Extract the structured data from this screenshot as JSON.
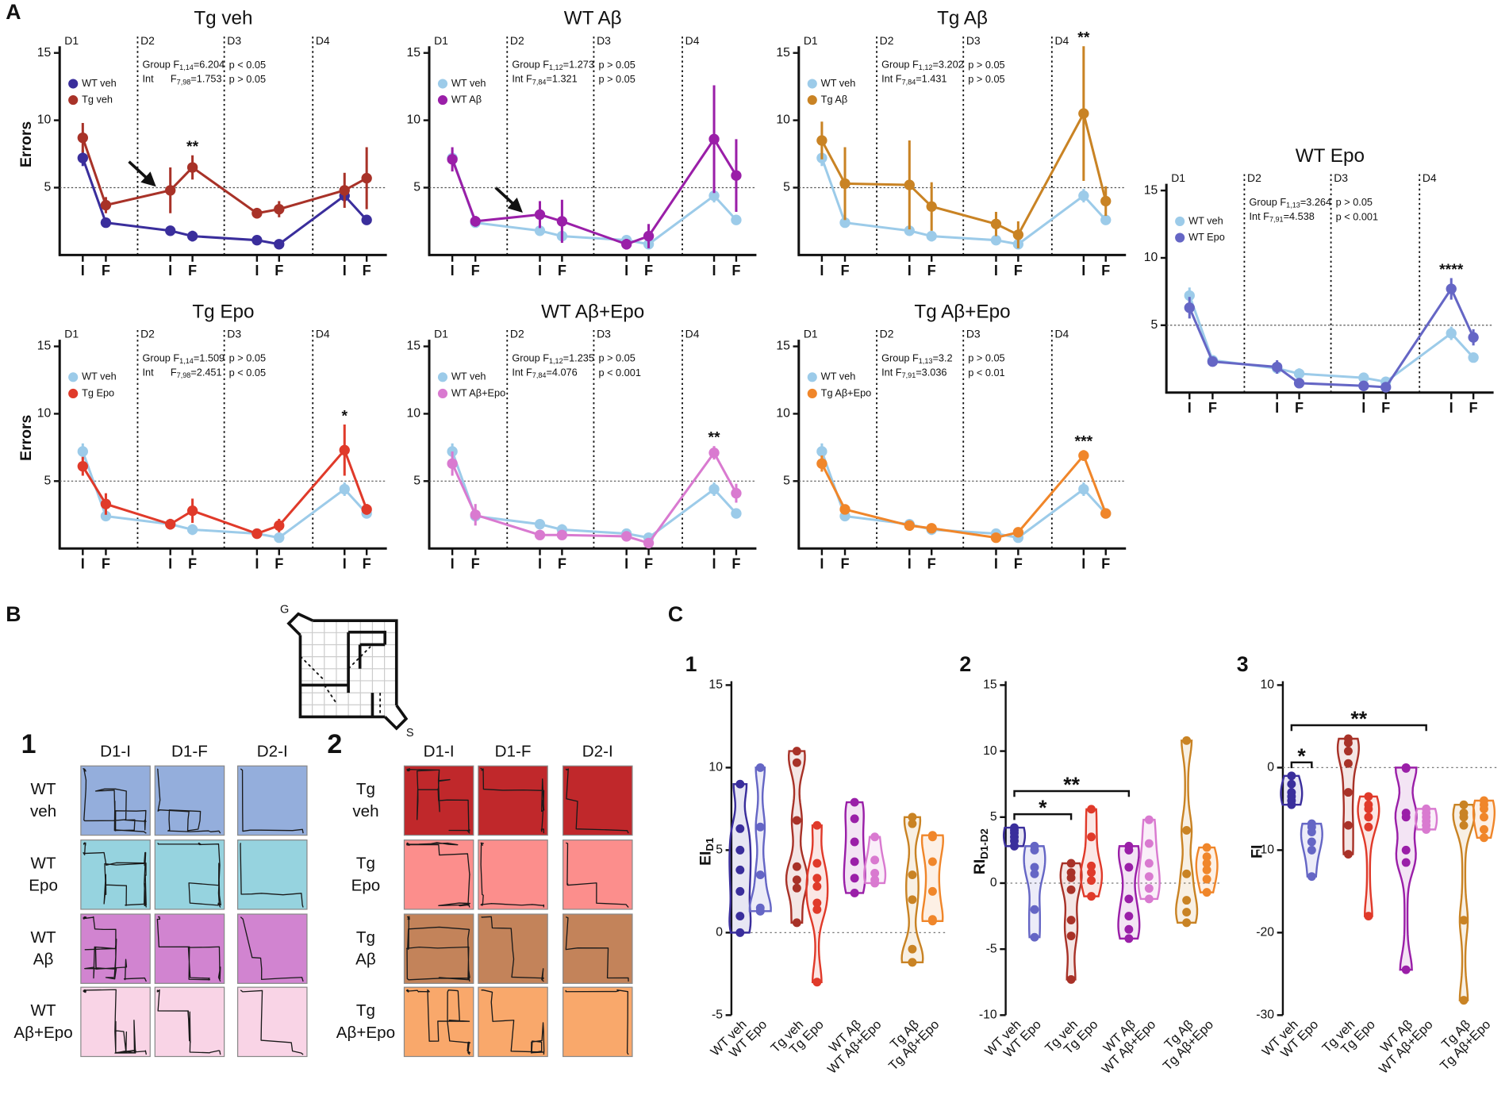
{
  "labels": {
    "a": "A",
    "c": "C"
  },
  "chart_data": [
    {
      "type": "line",
      "title": "Tg veh",
      "y_label": "Errors",
      "categories": [
        "I",
        "F",
        "I",
        "F",
        "I",
        "F",
        "I",
        "F"
      ],
      "days": [
        "D1",
        "D2",
        "D3",
        "D4"
      ],
      "ylim": [
        0,
        15.5
      ],
      "yticks": [
        5,
        10,
        15
      ],
      "hline": 5,
      "legend": "upper left",
      "series": [
        {
          "name": "WT veh",
          "color": "#3a2e9c",
          "values": [
            7.2,
            2.4,
            1.8,
            1.4,
            1.1,
            0.8,
            4.4,
            2.6
          ],
          "errors": [
            0.6,
            0.3,
            0.2,
            0.4,
            0.2,
            0.2,
            0.5,
            0.3
          ]
        },
        {
          "name": "Tg veh",
          "color": "#a83228",
          "values": [
            8.7,
            3.7,
            4.8,
            6.5,
            3.1,
            3.4,
            4.8,
            5.7
          ],
          "errors": [
            1.1,
            0.6,
            1.7,
            0.9,
            0.4,
            0.6,
            1.3,
            2.3
          ]
        }
      ],
      "significance": [
        null,
        null,
        null,
        "**",
        null,
        null,
        null,
        null
      ],
      "stats": [
        {
          "label": "Group F",
          "sub": "1,14",
          "value": "=6.204",
          "p": "p < 0.05"
        },
        {
          "label": "Int      F",
          "sub": "7,98",
          "value": "=1.753",
          "p": "p > 0.05"
        }
      ]
    },
    {
      "type": "line",
      "title": "WT Aβ",
      "categories": [
        "I",
        "F",
        "I",
        "F",
        "I",
        "F",
        "I",
        "F"
      ],
      "days": [
        "D1",
        "D2",
        "D3",
        "D4"
      ],
      "ylim": [
        0,
        15.5
      ],
      "yticks": [
        5,
        10,
        15
      ],
      "hline": 5,
      "legend": "upper left",
      "series": [
        {
          "name": "WT veh",
          "color": "#9ccbe9",
          "values": [
            7.2,
            2.4,
            1.8,
            1.4,
            1.1,
            0.8,
            4.4,
            2.6
          ],
          "errors": [
            0.6,
            0.3,
            0.2,
            0.4,
            0.2,
            0.2,
            0.5,
            0.3
          ]
        },
        {
          "name": "WT Aβ",
          "color": "#9a1fa8",
          "values": [
            7.1,
            2.5,
            3.0,
            2.5,
            0.8,
            1.4,
            8.6,
            5.9
          ],
          "errors": [
            0.9,
            0.4,
            1.0,
            1.6,
            0.4,
            0.9,
            4.0,
            2.7
          ]
        }
      ],
      "stats": [
        {
          "label": "Group F",
          "sub": "1,12",
          "value": "=1.273",
          "p": "p > 0.05"
        },
        {
          "label": "Int F",
          "sub": "7,84",
          "value": "=1.321",
          "p": "p > 0.05"
        }
      ]
    },
    {
      "type": "line",
      "title": "Tg Aβ",
      "categories": [
        "I",
        "F",
        "I",
        "F",
        "I",
        "F",
        "I",
        "F"
      ],
      "days": [
        "D1",
        "D2",
        "D3",
        "D4"
      ],
      "ylim": [
        0,
        15.5
      ],
      "yticks": [
        5,
        10,
        15
      ],
      "hline": 5,
      "legend": "upper left",
      "series": [
        {
          "name": "WT veh",
          "color": "#9ccbe9",
          "values": [
            7.2,
            2.4,
            1.8,
            1.4,
            1.1,
            0.8,
            4.4,
            2.6
          ],
          "errors": [
            0.6,
            0.3,
            0.2,
            0.4,
            0.2,
            0.2,
            0.5,
            0.3
          ]
        },
        {
          "name": "Tg Aβ",
          "color": "#c98324",
          "values": [
            8.5,
            5.3,
            5.2,
            3.6,
            2.3,
            1.5,
            10.5,
            4.0
          ],
          "errors": [
            1.4,
            2.7,
            3.3,
            1.8,
            0.9,
            1.0,
            5.0,
            1.1
          ]
        }
      ],
      "significance": [
        null,
        null,
        null,
        null,
        null,
        null,
        "**",
        null
      ],
      "stats": [
        {
          "label": "Group F",
          "sub": "1,12",
          "value": "=3.202",
          "p": "p > 0.05"
        },
        {
          "label": "Int F",
          "sub": "7,84",
          "value": "=1.431",
          "p": "p > 0.05"
        }
      ]
    },
    {
      "type": "line",
      "title": "WT Epo",
      "categories": [
        "I",
        "F",
        "I",
        "F",
        "I",
        "F",
        "I",
        "F"
      ],
      "days": [
        "D1",
        "D2",
        "D3",
        "D4"
      ],
      "ylim": [
        0,
        15.5
      ],
      "yticks": [
        5,
        10,
        15
      ],
      "hline": 5,
      "legend": "upper left",
      "series": [
        {
          "name": "WT veh",
          "color": "#9ccbe9",
          "values": [
            7.2,
            2.4,
            1.8,
            1.4,
            1.1,
            0.8,
            4.4,
            2.6
          ],
          "errors": [
            0.6,
            0.3,
            0.2,
            0.4,
            0.2,
            0.2,
            0.5,
            0.3
          ]
        },
        {
          "name": "WT Epo",
          "color": "#6566c5",
          "values": [
            6.3,
            2.3,
            1.9,
            0.7,
            0.5,
            0.4,
            7.7,
            4.1
          ],
          "errors": [
            0.8,
            0.2,
            0.5,
            0.2,
            0.2,
            0.2,
            0.8,
            0.6
          ]
        }
      ],
      "significance": [
        null,
        null,
        null,
        null,
        null,
        null,
        "****",
        null
      ],
      "stats": [
        {
          "label": "Group F",
          "sub": "1,13",
          "value": "=3.264",
          "p": "p > 0.05"
        },
        {
          "label": "Int F",
          "sub": "7,91",
          "value": "=4.538",
          "p": "p < 0.001"
        }
      ]
    },
    {
      "type": "line",
      "title": "Tg Epo",
      "y_label": "Errors",
      "categories": [
        "I",
        "F",
        "I",
        "F",
        "I",
        "F",
        "I",
        "F"
      ],
      "days": [
        "D1",
        "D2",
        "D3",
        "D4"
      ],
      "ylim": [
        0,
        15.5
      ],
      "yticks": [
        5,
        10,
        15
      ],
      "hline": 5,
      "legend": "upper left",
      "series": [
        {
          "name": "WT veh",
          "color": "#9ccbe9",
          "values": [
            7.2,
            2.4,
            1.8,
            1.4,
            1.1,
            0.8,
            4.4,
            2.6
          ],
          "errors": [
            0.6,
            0.3,
            0.2,
            0.4,
            0.2,
            0.2,
            0.5,
            0.3
          ]
        },
        {
          "name": "Tg Epo",
          "color": "#e03a2a",
          "values": [
            6.1,
            3.3,
            1.8,
            2.8,
            1.1,
            1.7,
            7.3,
            2.9
          ],
          "errors": [
            0.7,
            0.8,
            0.4,
            0.9,
            0.2,
            0.5,
            1.9,
            0.4
          ]
        }
      ],
      "significance": [
        null,
        null,
        null,
        null,
        null,
        null,
        "*",
        null
      ],
      "stats": [
        {
          "label": "Group F",
          "sub": "1,14",
          "value": "=1.509",
          "p": "p > 0.05"
        },
        {
          "label": "Int      F",
          "sub": "7,98",
          "value": "=2.451",
          "p": "p < 0.05"
        }
      ]
    },
    {
      "type": "line",
      "title": "WT Aβ+Epo",
      "categories": [
        "I",
        "F",
        "I",
        "F",
        "I",
        "F",
        "I",
        "F"
      ],
      "days": [
        "D1",
        "D2",
        "D3",
        "D4"
      ],
      "ylim": [
        0,
        15.5
      ],
      "yticks": [
        5,
        10,
        15
      ],
      "hline": 5,
      "legend": "upper left",
      "series": [
        {
          "name": "WT veh",
          "color": "#9ccbe9",
          "values": [
            7.2,
            2.4,
            1.8,
            1.4,
            1.1,
            0.8,
            4.4,
            2.6
          ],
          "errors": [
            0.6,
            0.3,
            0.2,
            0.4,
            0.2,
            0.2,
            0.5,
            0.3
          ]
        },
        {
          "name": "WT Aβ+Epo",
          "color": "#d97ad0",
          "values": [
            6.3,
            2.5,
            1.0,
            1.0,
            0.9,
            0.4,
            7.1,
            4.1
          ],
          "errors": [
            0.9,
            0.8,
            0.2,
            0.2,
            0.2,
            0.2,
            0.5,
            0.7
          ]
        }
      ],
      "significance": [
        null,
        null,
        null,
        null,
        null,
        null,
        "**",
        null
      ],
      "stats": [
        {
          "label": "Group F",
          "sub": "1,12",
          "value": "=1.235",
          "p": "p > 0.05"
        },
        {
          "label": "Int F",
          "sub": "7,84",
          "value": "=4.076",
          "p": "p < 0.001"
        }
      ]
    },
    {
      "type": "line",
      "title": "Tg Aβ+Epo",
      "categories": [
        "I",
        "F",
        "I",
        "F",
        "I",
        "F",
        "I",
        "F"
      ],
      "days": [
        "D1",
        "D2",
        "D3",
        "D4"
      ],
      "ylim": [
        0,
        15.5
      ],
      "yticks": [
        5,
        10,
        15
      ],
      "hline": 5,
      "legend": "upper left",
      "series": [
        {
          "name": "WT veh",
          "color": "#9ccbe9",
          "values": [
            7.2,
            2.4,
            1.8,
            1.4,
            1.1,
            0.8,
            4.4,
            2.6
          ],
          "errors": [
            0.6,
            0.3,
            0.2,
            0.4,
            0.2,
            0.2,
            0.5,
            0.3
          ]
        },
        {
          "name": "Tg Aβ+Epo",
          "color": "#f0862a",
          "values": [
            6.3,
            2.9,
            1.7,
            1.5,
            0.8,
            1.2,
            6.9,
            2.6
          ],
          "errors": [
            0.6,
            0.3,
            0.2,
            0.2,
            0.3,
            0.2,
            0.4,
            0.2
          ]
        }
      ],
      "significance": [
        null,
        null,
        null,
        null,
        null,
        null,
        "***",
        null
      ],
      "stats": [
        {
          "label": "Group F",
          "sub": "1,13",
          "value": "=3.2",
          "p": "p > 0.05"
        },
        {
          "label": "Int F",
          "sub": "7,91",
          "value": "=3.036",
          "p": "p < 0.01"
        }
      ]
    },
    {
      "type": "violin",
      "number": "1",
      "y_label": {
        "text": "EI",
        "sub": "D1"
      },
      "categories": [
        "WT veh",
        "WT Epo",
        "Tg veh",
        "Tg Epo",
        "WT Aβ",
        "WT Aβ+Epo",
        "Tg Aβ",
        "Tg Aβ+Epo"
      ],
      "colors": [
        "#3a2e9c",
        "#6566c5",
        "#a83228",
        "#e03a2a",
        "#9a1fa8",
        "#d97ad0",
        "#c98324",
        "#f0862a"
      ],
      "ylim": [
        -5,
        15
      ],
      "yticks": [
        -5,
        0,
        5,
        10,
        15
      ],
      "hline": 0,
      "values": [
        [
          9,
          6.3,
          5,
          3.8,
          2.5,
          1,
          0
        ],
        [
          10,
          6.4,
          3.5,
          1.5,
          1.3,
          1.3
        ],
        [
          11,
          10.3,
          6.8,
          4,
          3.2,
          2.7,
          0.6
        ],
        [
          6.5,
          4.2,
          3.3,
          2.8,
          1.8,
          1.4,
          -3
        ],
        [
          7.9,
          6.9,
          5.5,
          4.3,
          3.3,
          2.4
        ],
        [
          5.8,
          4.4,
          3.6,
          3.2,
          3.0
        ],
        [
          7,
          6.6,
          3.5,
          2,
          -1,
          -1.8,
          -1.8
        ],
        [
          5.9,
          5.8,
          4.3,
          2.5,
          0.8,
          0.7
        ]
      ]
    },
    {
      "type": "violin",
      "number": "2",
      "y_label": {
        "text": "RI",
        "sub": "D1-D2"
      },
      "categories": [
        "WT veh",
        "WT Epo",
        "Tg veh",
        "Tg Epo",
        "WT Aβ",
        "WT Aβ+Epo",
        "Tg Aβ",
        "Tg Aβ+Epo"
      ],
      "colors": [
        "#3a2e9c",
        "#6566c5",
        "#a83228",
        "#e03a2a",
        "#9a1fa8",
        "#d97ad0",
        "#c98324",
        "#f0862a"
      ],
      "ylim": [
        -10,
        15
      ],
      "yticks": [
        -10,
        -5,
        0,
        5,
        10,
        15
      ],
      "hline": 0,
      "values": [
        [
          4.2,
          4.0,
          3.8,
          3.5,
          3.2,
          2.8
        ],
        [
          2.8,
          2.5,
          1.2,
          0.7,
          -2,
          -4.1
        ],
        [
          1.5,
          0.8,
          0.4,
          -0.5,
          -2.8,
          -4,
          -7.3
        ],
        [
          5.6,
          3.5,
          1.3,
          0.8,
          0.2,
          -1
        ],
        [
          2.8,
          2.5,
          1.2,
          -1.2,
          -2.5,
          -3.5,
          -4.2
        ],
        [
          4.8,
          3.0,
          1.5,
          0.5,
          -0.4,
          -1.2
        ],
        [
          10.8,
          4,
          0.7,
          -1.3,
          -2.2,
          -3
        ],
        [
          2.7,
          2.0,
          1.5,
          1.0,
          0.3,
          -0.7
        ]
      ],
      "comparisons": [
        {
          "pair": [
            0,
            2
          ],
          "label": "*"
        },
        {
          "pair": [
            0,
            4
          ],
          "label": "**"
        }
      ]
    },
    {
      "type": "violin",
      "number": "3",
      "y_label": {
        "text": "FI"
      },
      "categories": [
        "WT veh",
        "WT Epo",
        "Tg veh",
        "Tg Epo",
        "WT Aβ",
        "WT Aβ+Epo",
        "Tg Aβ",
        "Tg Aβ+Epo"
      ],
      "colors": [
        "#3a2e9c",
        "#6566c5",
        "#a83228",
        "#e03a2a",
        "#9a1fa8",
        "#d97ad0",
        "#c98324",
        "#f0862a"
      ],
      "ylim": [
        -30,
        10
      ],
      "yticks": [
        -30,
        -20,
        -10,
        0,
        10
      ],
      "hline": 0,
      "values": [
        [
          -1,
          -2,
          -3,
          -3.5,
          -4,
          -4.5
        ],
        [
          -6.8,
          -7.2,
          -7.8,
          -9,
          -10,
          -13.2
        ],
        [
          3.5,
          3,
          2,
          0.5,
          -3,
          -7,
          -10.5
        ],
        [
          -3.5,
          -4.5,
          -5,
          -6,
          -7.2,
          -18
        ],
        [
          0,
          -0.1,
          -5.5,
          -6,
          -10,
          -11.5,
          -24.5
        ],
        [
          -5,
          -5.5,
          -6,
          -6.5,
          -7,
          -7.5
        ],
        [
          -4.5,
          -5.5,
          -6,
          -7,
          -18.5,
          -28.2
        ],
        [
          -4,
          -4.5,
          -5,
          -6,
          -7.5,
          -8.5
        ]
      ],
      "comparisons": [
        {
          "pair": [
            0,
            1
          ],
          "label": "*"
        },
        {
          "pair": [
            0,
            5
          ],
          "label": "**"
        }
      ]
    }
  ],
  "panel_b": {
    "label": "B",
    "maze": {
      "goal": "G",
      "start": "S"
    },
    "groups": [
      {
        "number": "1",
        "columns": [
          "D1-I",
          "D1-F",
          "D2-I"
        ],
        "rows": [
          {
            "label": [
              "WT",
              "veh"
            ],
            "color": "#94aedc"
          },
          {
            "label": [
              "WT",
              "Epo"
            ],
            "color": "#96d3df"
          },
          {
            "label": [
              "WT",
              "Aβ"
            ],
            "color": "#d184d0"
          },
          {
            "label": [
              "WT",
              "Aβ+Epo"
            ],
            "color": "#f9d4e6"
          }
        ]
      },
      {
        "number": "2",
        "columns": [
          "D1-I",
          "D1-F",
          "D2-I"
        ],
        "rows": [
          {
            "label": [
              "Tg",
              "veh"
            ],
            "color": "#c0282b"
          },
          {
            "label": [
              "Tg",
              "Epo"
            ],
            "color": "#fc8e8c"
          },
          {
            "label": [
              "Tg",
              "Aβ"
            ],
            "color": "#c3835a"
          },
          {
            "label": [
              "Tg",
              "Aβ+Epo"
            ],
            "color": "#f9a86b"
          }
        ]
      }
    ]
  }
}
